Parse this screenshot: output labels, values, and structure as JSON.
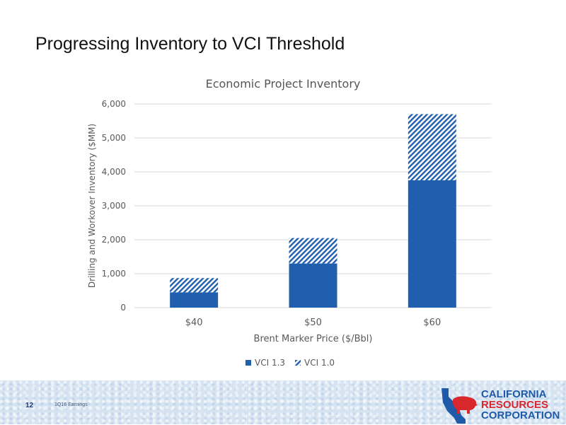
{
  "slide": {
    "title": "Progressing Inventory to VCI Threshold",
    "page_number": "12",
    "footer_label": "1Q16 Earnings"
  },
  "logo": {
    "line1": "CALIFORNIA",
    "line2": "RESOURCES",
    "line3": "CORPORATION",
    "color_blue": "#1f5aa8",
    "color_red": "#d9272e"
  },
  "colors": {
    "series_solid": "#1f5fae",
    "series_hatch": "#1f5fae",
    "grid": "#d9d9d9",
    "axis_text": "#595959"
  },
  "chart_data": {
    "type": "bar",
    "stacked": true,
    "title": "Economic Project Inventory",
    "xlabel": "Brent Marker Price ($/Bbl)",
    "ylabel": "Drilling and Workover Inventory ($MM)",
    "categories": [
      "$40",
      "$50",
      "$60"
    ],
    "ylim": [
      0,
      6000
    ],
    "yticks": [
      "0",
      "1,000",
      "2,000",
      "3,000",
      "4,000",
      "5,000",
      "6,000"
    ],
    "grid": true,
    "legend_position": "bottom",
    "series": [
      {
        "name": "VCI 1.3",
        "values": [
          450,
          1300,
          3750
        ],
        "fill": "solid"
      },
      {
        "name": "VCI 1.0",
        "values": [
          420,
          750,
          1950
        ],
        "fill": "hatch"
      }
    ]
  }
}
